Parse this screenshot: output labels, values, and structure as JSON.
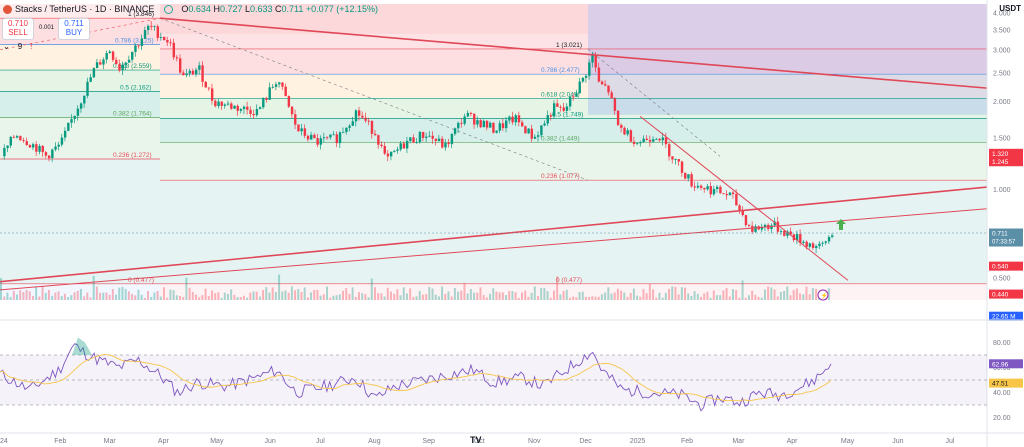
{
  "header": {
    "symbol_line": "Stacks / TetherUS · 1D · BINANCE",
    "o_label": "O",
    "o_value": "0.634",
    "h_label": "H",
    "h_value": "0.727",
    "l_label": "L",
    "l_value": "0.633",
    "c_label": "C",
    "c_value": "0.711",
    "change": "+0.077 (+12.15%)",
    "currency": "USDT"
  },
  "trade": {
    "sell_price": "0.710",
    "sell_label": "SELL",
    "spread": "0.001",
    "buy_price": "0.711",
    "buy_label": "BUY"
  },
  "indicator_row": {
    "count": "9"
  },
  "colors": {
    "up": "#089981",
    "down": "#f23645",
    "trend": "#e04858",
    "rsi": "#7e57c2",
    "rsi_ma": "#f7c548",
    "fib_top": "#ea4b5b"
  },
  "icons": [
    "logo-icon",
    "eye-icon",
    "visibility-icon",
    "lightning-icon",
    "tradingview-logo-icon",
    "arrow-up-icon"
  ],
  "price_axis": {
    "ticks": [
      "4.000",
      "3.500",
      "3.000",
      "2.500",
      "2.000",
      "1.500",
      "1.000",
      "0.500"
    ],
    "badges": [
      {
        "label": "1.320",
        "color": "#f23645"
      },
      {
        "label": "1.245",
        "color": "#f23645"
      },
      {
        "label": "0.711",
        "sub": "07:33:57",
        "color": "#5b8fa8"
      },
      {
        "label": "0.540",
        "color": "#f23645"
      },
      {
        "label": "0.440",
        "color": "#f23645"
      },
      {
        "label": "22.65 M",
        "color": "#2962ff"
      }
    ]
  },
  "rsi_axis": {
    "ticks": [
      "80.00",
      "60.00",
      "40.00",
      "20.00"
    ],
    "badges": [
      {
        "label": "62.96",
        "color": "#7e57c2"
      },
      {
        "label": "47.51",
        "color": "#f7c548"
      }
    ]
  },
  "time_axis": [
    "24",
    "Feb",
    "Mar",
    "Apr",
    "May",
    "Jun",
    "Jul",
    "Aug",
    "Sep",
    "Oct",
    "Nov",
    "Dec",
    "2025",
    "Feb",
    "Mar",
    "Apr",
    "May",
    "Jun",
    "Jul"
  ],
  "fib_left_labels": [
    "1 (3.846)",
    "0.786 (3.125)",
    "0.618 (2.559)",
    "0.5 (2.162)",
    "0.382 (1.764)",
    "0.236 (1.272)",
    "0 (0.477)"
  ],
  "fib_right_labels": [
    "1 (3.021)",
    "0.786 (2.477)",
    "0.618 (2.049)",
    "0.5 (1.749)",
    "0.382 (1.449)",
    "0.236 (1.077)",
    "0 (0.477)"
  ],
  "chart_data": {
    "type": "candlestick",
    "title": "Stacks / TetherUS · 1D · BINANCE",
    "x_range": [
      "2024-01",
      "2025-07"
    ],
    "y_scale": "log",
    "ylim": [
      0.42,
      4.3
    ],
    "last_close": 0.711,
    "price_path": [
      [
        0.0,
        1.3
      ],
      [
        0.015,
        1.55
      ],
      [
        0.035,
        1.4
      ],
      [
        0.045,
        1.3
      ],
      [
        0.06,
        1.42
      ],
      [
        0.08,
        2.0
      ],
      [
        0.095,
        2.6
      ],
      [
        0.11,
        3.0
      ],
      [
        0.12,
        2.6
      ],
      [
        0.14,
        3.2
      ],
      [
        0.15,
        3.6
      ],
      [
        0.16,
        3.4
      ],
      [
        0.17,
        3.2
      ],
      [
        0.185,
        2.4
      ],
      [
        0.2,
        2.6
      ],
      [
        0.215,
        2.0
      ],
      [
        0.24,
        1.9
      ],
      [
        0.26,
        1.85
      ],
      [
        0.28,
        2.4
      ],
      [
        0.3,
        1.6
      ],
      [
        0.32,
        1.45
      ],
      [
        0.34,
        1.5
      ],
      [
        0.36,
        1.85
      ],
      [
        0.38,
        1.55
      ],
      [
        0.39,
        1.25
      ],
      [
        0.41,
        1.45
      ],
      [
        0.43,
        1.55
      ],
      [
        0.45,
        1.4
      ],
      [
        0.47,
        1.8
      ],
      [
        0.5,
        1.6
      ],
      [
        0.52,
        1.75
      ],
      [
        0.54,
        1.5
      ],
      [
        0.56,
        1.9
      ],
      [
        0.57,
        1.85
      ],
      [
        0.59,
        2.4
      ],
      [
        0.6,
        2.9
      ],
      [
        0.605,
        2.3
      ],
      [
        0.615,
        2.2
      ],
      [
        0.625,
        1.65
      ],
      [
        0.645,
        1.45
      ],
      [
        0.665,
        1.55
      ],
      [
        0.68,
        1.3
      ],
      [
        0.7,
        1.05
      ],
      [
        0.72,
        1.0
      ],
      [
        0.74,
        0.95
      ],
      [
        0.76,
        0.73
      ],
      [
        0.78,
        0.76
      ],
      [
        0.8,
        0.7
      ],
      [
        0.815,
        0.66
      ],
      [
        0.83,
        0.63
      ],
      [
        0.842,
        0.711
      ]
    ],
    "rsi_path": [
      [
        0.0,
        55
      ],
      [
        0.03,
        42
      ],
      [
        0.06,
        58
      ],
      [
        0.075,
        78
      ],
      [
        0.085,
        72
      ],
      [
        0.1,
        66
      ],
      [
        0.12,
        60
      ],
      [
        0.14,
        66
      ],
      [
        0.16,
        55
      ],
      [
        0.18,
        40
      ],
      [
        0.2,
        48
      ],
      [
        0.23,
        45
      ],
      [
        0.26,
        52
      ],
      [
        0.28,
        58
      ],
      [
        0.3,
        40
      ],
      [
        0.33,
        45
      ],
      [
        0.36,
        52
      ],
      [
        0.38,
        35
      ],
      [
        0.4,
        45
      ],
      [
        0.43,
        50
      ],
      [
        0.46,
        55
      ],
      [
        0.48,
        58
      ],
      [
        0.5,
        48
      ],
      [
        0.53,
        52
      ],
      [
        0.55,
        45
      ],
      [
        0.58,
        62
      ],
      [
        0.6,
        73
      ],
      [
        0.61,
        58
      ],
      [
        0.63,
        42
      ],
      [
        0.66,
        40
      ],
      [
        0.69,
        38
      ],
      [
        0.71,
        30
      ],
      [
        0.73,
        36
      ],
      [
        0.75,
        32
      ],
      [
        0.77,
        40
      ],
      [
        0.79,
        38
      ],
      [
        0.81,
        44
      ],
      [
        0.825,
        50
      ],
      [
        0.842,
        62.96
      ]
    ],
    "rsi_value": 62.96,
    "rsi_ma_value": 47.51,
    "rsi_levels": [
      70,
      50,
      30
    ]
  }
}
